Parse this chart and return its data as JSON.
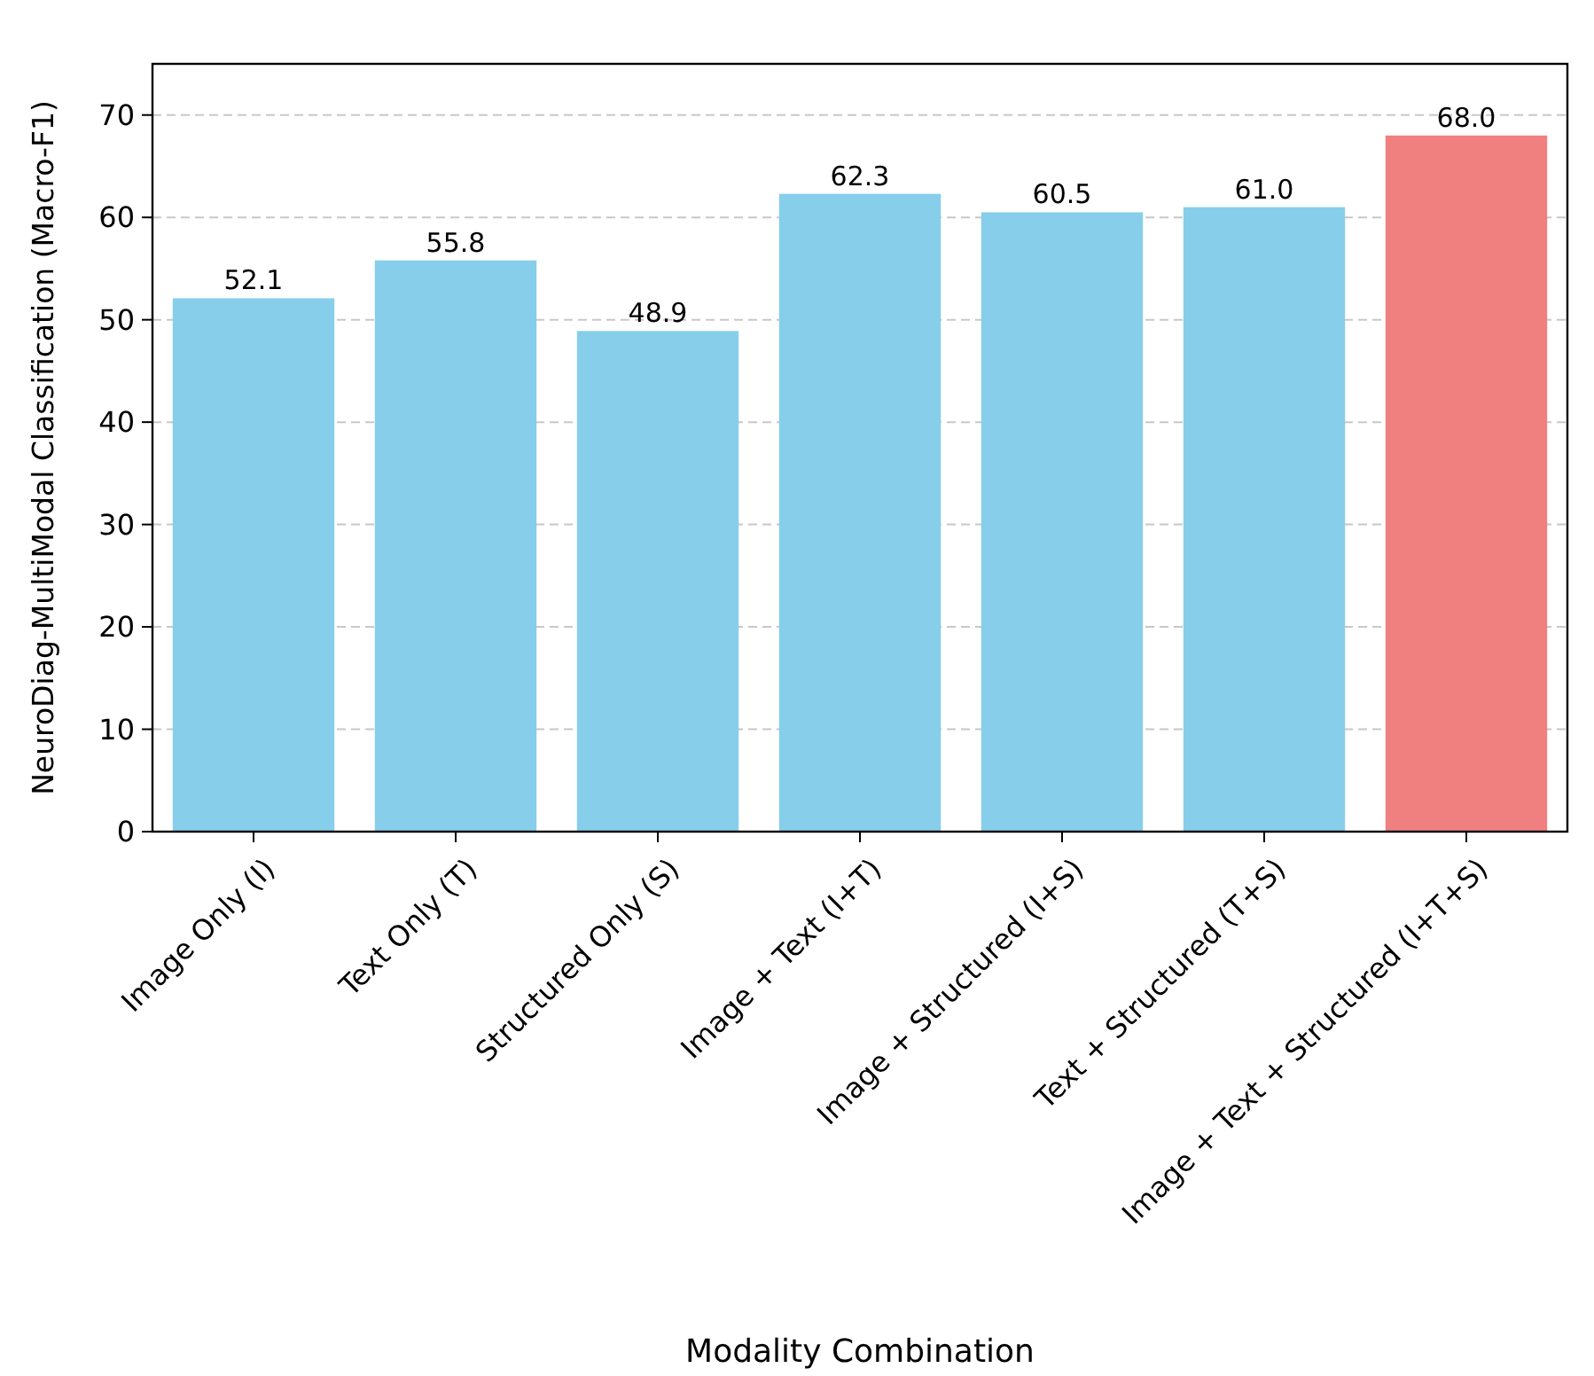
{
  "chart_data": {
    "type": "bar",
    "xlabel": "Modality Combination",
    "ylabel": "NeuroDiag-MultiModal Classification (Macro-F1)",
    "categories": [
      "Image Only (I)",
      "Text Only (T)",
      "Structured Only (S)",
      "Image + Text (I+T)",
      "Image + Structured (I+S)",
      "Text + Structured (T+S)",
      "Image + Text + Structured (I+T+S)"
    ],
    "values": [
      52.1,
      55.8,
      48.9,
      62.3,
      60.5,
      61.0,
      68.0
    ],
    "value_labels": [
      "52.1",
      "55.8",
      "48.9",
      "62.3",
      "60.5",
      "61.0",
      "68.0"
    ],
    "colors": [
      "#87ceeb",
      "#87ceeb",
      "#87ceeb",
      "#87ceeb",
      "#87ceeb",
      "#87ceeb",
      "#f08080"
    ],
    "ylim": [
      0,
      75
    ],
    "yticks": [
      0,
      10,
      20,
      30,
      40,
      50,
      60,
      70
    ],
    "grid": "y"
  }
}
